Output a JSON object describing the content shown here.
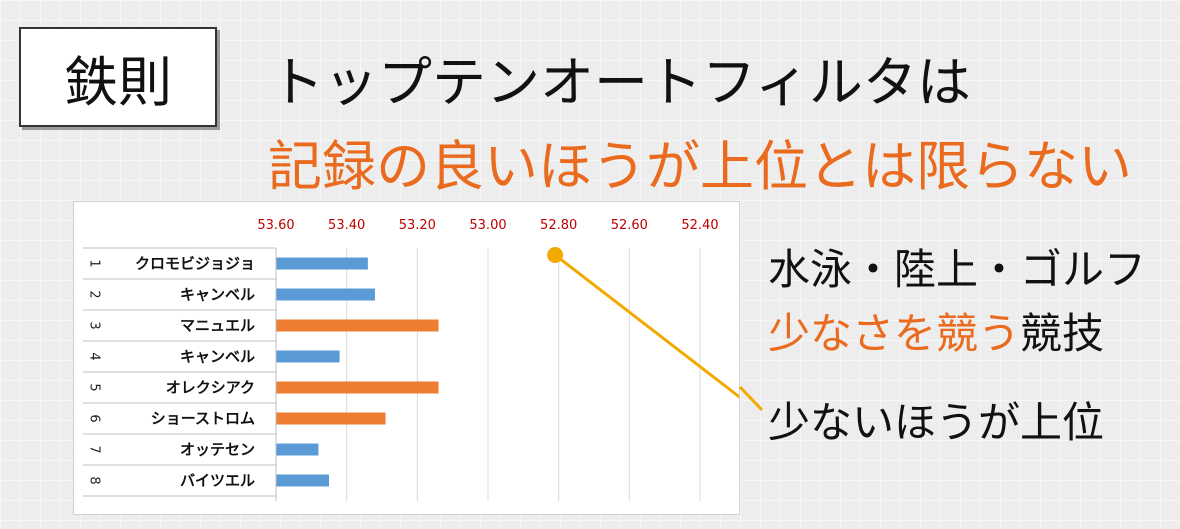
{
  "badge": "鉄則",
  "title_line1": "トップテンオートフィルタは",
  "title_line2": "記録の良いほうが上位とは限らない",
  "side_line1": "水泳・陸上・ゴルフ",
  "side_line2_highlight": "少なさを競う",
  "side_line2_rest": "競技",
  "side_line3": "少ないほうが上位",
  "colors": {
    "accent": "#ea6a1e",
    "bar_blue": "#5b9bd5",
    "bar_orange": "#ed7d31",
    "marker": "#f2a900",
    "tick_red": "#c00000"
  },
  "chart_data": {
    "type": "bar",
    "orientation": "horizontal",
    "x_reversed": true,
    "xlim": [
      53.6,
      52.4
    ],
    "x_ticks": [
      "53.60",
      "53.40",
      "53.20",
      "53.00",
      "52.80",
      "52.60",
      "52.40"
    ],
    "grid": true,
    "rows": [
      {
        "rank": "1",
        "name": "クロモビジョジョ",
        "value": 53.34,
        "highlight": false
      },
      {
        "rank": "2",
        "name": "キャンベル",
        "value": 53.32,
        "highlight": false
      },
      {
        "rank": "3",
        "name": "マニュエル",
        "value": 53.14,
        "highlight": true
      },
      {
        "rank": "4",
        "name": "キャンベル",
        "value": 53.42,
        "highlight": false
      },
      {
        "rank": "5",
        "name": "オレクシアク",
        "value": 53.14,
        "highlight": true
      },
      {
        "rank": "6",
        "name": "ショーストロム",
        "value": 53.29,
        "highlight": true
      },
      {
        "rank": "7",
        "name": "オッテセン",
        "value": 53.48,
        "highlight": false
      },
      {
        "rank": "8",
        "name": "バイツエル",
        "value": 53.45,
        "highlight": false
      }
    ],
    "marker_value": 52.81
  }
}
